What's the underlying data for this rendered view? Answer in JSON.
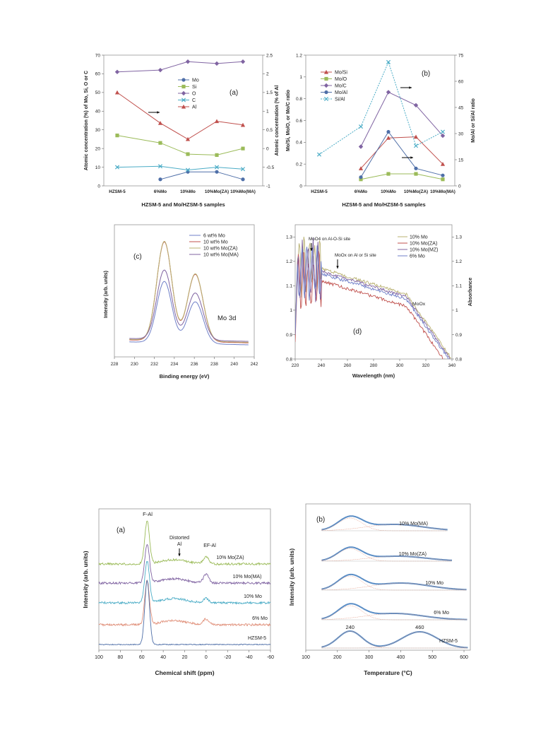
{
  "chart_data": [
    {
      "id": "a_top",
      "panel": "(a)",
      "type": "line",
      "categories": [
        "HZSM-5",
        "6%Mo",
        "10%Mo",
        "10%Mo(ZA)",
        "10%Mo(MA)"
      ],
      "xlabel": "HZSM-5 and Mo/HZSM-5 samples",
      "ylabel": "Atomic concentration (%) of Mo, Si, O or C",
      "ylabel2": "Atomic concentration (%  of Al",
      "ylim": [
        0,
        70
      ],
      "yticks": [
        "0",
        "10",
        "20",
        "30",
        "40",
        "50",
        "60",
        "70"
      ],
      "ylim2": [
        -1,
        2.5
      ],
      "yticks2": [
        "-1",
        "-0.5",
        "0",
        "0.5",
        "1",
        "1.5",
        "2",
        "2.5"
      ],
      "series": [
        {
          "name": "Mo",
          "color": "#4f6fa8",
          "marker": "circle",
          "axis": "left",
          "values": [
            null,
            3.5,
            7.5,
            7.5,
            3.5
          ]
        },
        {
          "name": "Si",
          "color": "#9bbb59",
          "marker": "square",
          "axis": "left",
          "values": [
            27,
            23,
            17,
            16.5,
            20
          ]
        },
        {
          "name": "O",
          "color": "#8064a2",
          "marker": "diamond",
          "axis": "left",
          "values": [
            61,
            62,
            66.5,
            65.5,
            66.5
          ]
        },
        {
          "name": "C",
          "color": "#4bacc6",
          "marker": "x",
          "axis": "left",
          "values": [
            10,
            10.5,
            8.5,
            10,
            9
          ]
        },
        {
          "name": "Al",
          "color": "#c0504d",
          "marker": "triangle",
          "axis": "right",
          "values": [
            1.5,
            0.68,
            0.25,
            0.73,
            0.63
          ]
        }
      ]
    },
    {
      "id": "b_top",
      "panel": "(b)",
      "type": "line",
      "categories": [
        "HZSM-5",
        "6%Mo",
        "10%Mo",
        "10%Mo(ZA)",
        "10%Mo(MA)"
      ],
      "xlabel": "HZSM-5 and Mo/HZSM-5 samples",
      "ylabel": "Mo/Si, Mo/O, or Mo/C ratio",
      "ylabel2": "Mo/Al or Si/Al ratio",
      "ylim": [
        0,
        1.2
      ],
      "yticks": [
        "0",
        "0.2",
        "0.4",
        "0.6",
        "0.8",
        "1",
        "1.2"
      ],
      "ylim2": [
        0,
        75
      ],
      "yticks2": [
        "0",
        "15",
        "30",
        "45",
        "60",
        "75"
      ],
      "series": [
        {
          "name": "Mo/Si",
          "color": "#c0504d",
          "marker": "triangle",
          "axis": "left",
          "values": [
            null,
            0.16,
            0.44,
            0.45,
            0.2
          ]
        },
        {
          "name": "Mo/O",
          "color": "#9bbb59",
          "marker": "square",
          "axis": "left",
          "values": [
            null,
            0.06,
            0.11,
            0.11,
            0.06
          ]
        },
        {
          "name": "Mo/C",
          "color": "#8064a2",
          "marker": "diamond",
          "axis": "left",
          "values": [
            null,
            0.36,
            0.86,
            0.74,
            0.46
          ]
        },
        {
          "name": "Mo/Al",
          "color": "#4f6fa8",
          "marker": "circle",
          "axis": "right",
          "values": [
            null,
            5,
            31,
            10,
            6
          ]
        },
        {
          "name": "Si/Al",
          "color": "#4bacc6",
          "marker": "x",
          "axis": "right",
          "dashed": true,
          "values": [
            18,
            34,
            71,
            23,
            31
          ]
        }
      ]
    },
    {
      "id": "c_mid",
      "panel": "(c)",
      "type": "line",
      "xlabel": "Binding energy (eV)",
      "ylabel": "Intensity (arb. units)",
      "annotation": "Mo 3d",
      "xlim": [
        228,
        242
      ],
      "xticks": [
        "228",
        "230",
        "232",
        "234",
        "236",
        "238",
        "240",
        "242"
      ],
      "series": [
        {
          "name": "6 wt% Mo",
          "color": "#6f7fc8",
          "amp": 0.62,
          "base": 0.05
        },
        {
          "name": "10 wt% Mo",
          "color": "#c0504d",
          "amp": 1.0,
          "base": 0.07
        },
        {
          "name": "10 wt% Mo(ZA)",
          "color": "#b8b070",
          "amp": 1.0,
          "base": 0.075
        },
        {
          "name": "10 wt% Mo(MA)",
          "color": "#8064a2",
          "amp": 0.7,
          "base": 0.085
        }
      ],
      "peaks": [
        233,
        236.1
      ]
    },
    {
      "id": "d_mid",
      "panel": "(d)",
      "type": "line",
      "xlabel": "Wavelength (nm)",
      "ylabel": "Absorbance",
      "xlim": [
        220,
        340
      ],
      "xticks": [
        "220",
        "240",
        "260",
        "280",
        "300",
        "320",
        "340"
      ],
      "ylim": [
        0.8,
        1.35
      ],
      "yticks": [
        "0.8",
        "0.9",
        "1",
        "1.1",
        "1.2",
        "1.3"
      ],
      "annotations": [
        "MoO4 on Al-O-Si site",
        "MoOx on Al or Si site",
        "MoOx"
      ],
      "series": [
        {
          "name": "10% Mo",
          "color": "#b8b070",
          "offset": 0.02
        },
        {
          "name": "10% Mo(ZA)",
          "color": "#c0504d",
          "offset": -0.03
        },
        {
          "name": "10% Mo(MZ)",
          "color": "#8064a2",
          "offset": 0.01
        },
        {
          "name": "6% Mo",
          "color": "#6f7fc8",
          "offset": 0.0
        }
      ]
    },
    {
      "id": "a_bottom",
      "panel": "(a)",
      "type": "line",
      "xlabel": "Chemical shift (ppm)",
      "ylabel": "Intensity (arb. units)",
      "xlim": [
        100,
        -60
      ],
      "xticks": [
        "100",
        "80",
        "60",
        "40",
        "20",
        "0",
        "-20",
        "-40",
        "-60"
      ],
      "annotations": [
        "F-Al",
        "Distorted",
        "Al",
        "EF-Al"
      ],
      "series": [
        {
          "name": "10% Mo(ZA)",
          "color": "#9bbb59"
        },
        {
          "name": "10% Mo(MA)",
          "color": "#8064a2"
        },
        {
          "name": "10% Mo",
          "color": "#4bacc6"
        },
        {
          "name": "6% Mo",
          "color": "#e0907a"
        },
        {
          "name": "HZSM-5",
          "color": "#4f6fa8"
        }
      ]
    },
    {
      "id": "b_bottom",
      "panel": "(b)",
      "type": "line",
      "xlabel": "Temperature (°C)",
      "ylabel": "Intensity (arb. units)",
      "xlim": [
        100,
        620
      ],
      "xticks": [
        "100",
        "200",
        "300",
        "400",
        "500",
        "600"
      ],
      "annotations": [
        "240",
        "460"
      ],
      "series": [
        {
          "name": "10% Mo(MA)",
          "color": "#5b8ec6"
        },
        {
          "name": "10% Mo(ZA)",
          "color": "#5b8ec6"
        },
        {
          "name": "10% Mo",
          "color": "#5b8ec6"
        },
        {
          "name": "6% Mo",
          "color": "#5b8ec6"
        },
        {
          "name": "HZSM-5",
          "color": "#5b8ec6"
        }
      ]
    }
  ]
}
